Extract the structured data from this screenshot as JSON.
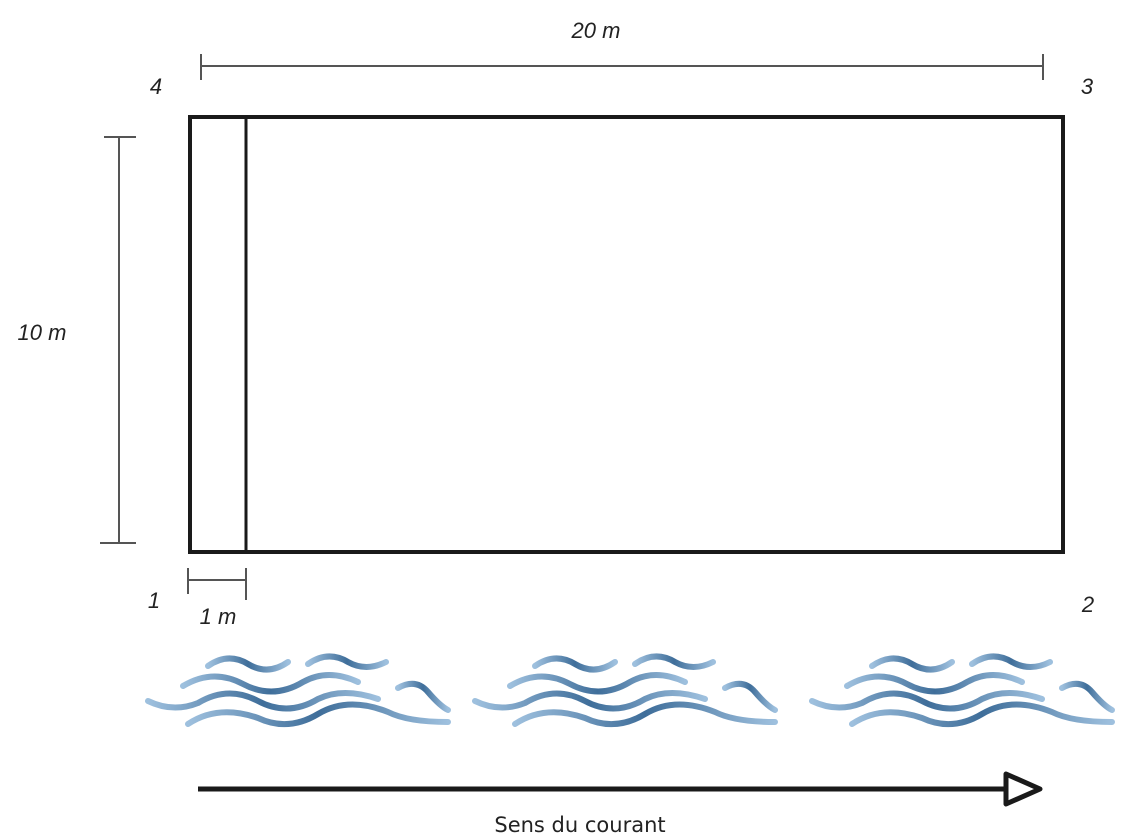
{
  "dimensions": {
    "length": "20 m",
    "width": "10 m",
    "strip": "1 m"
  },
  "corners": {
    "c1": "1",
    "c2": "2",
    "c3": "3",
    "c4": "4"
  },
  "current": {
    "caption": "Sens du courant"
  },
  "icons": {
    "waves": "water-waves-icon",
    "arrow": "current-arrow-icon"
  },
  "colors": {
    "outline": "#1a1a1a",
    "dimension": "#555555",
    "water_dark": "#3f6e9a",
    "water_light": "#8fb3d4"
  }
}
